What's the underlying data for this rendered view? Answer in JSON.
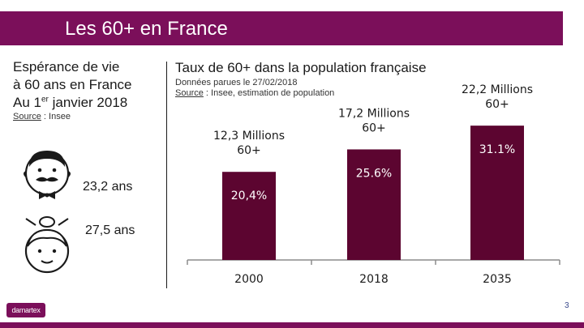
{
  "header": {
    "title": "Les 60+ en France"
  },
  "left_panel": {
    "heading_line1": "Espérance de vie",
    "heading_line2": "à 60 ans en France",
    "heading_line3_prefix": "Au 1",
    "heading_line3_sup": "er",
    "heading_line3_suffix": " janvier 2018",
    "source_label": "Source",
    "source_text": " : Insee",
    "men_life_expectancy": "23,2 ans",
    "women_life_expectancy": "27,5 ans"
  },
  "right_panel": {
    "heading": "Taux de 60+ dans la population française",
    "subtitle": "Données parues le 27/02/2018",
    "source_label": "Source",
    "source_text": " : Insee, estimation de population"
  },
  "chart_data": {
    "type": "bar",
    "title": "Taux de 60+ dans la population française",
    "categories": [
      "2000",
      "2018",
      "2035"
    ],
    "values": [
      20.4,
      25.6,
      31.1
    ],
    "value_labels": [
      "20,4%",
      "25.6%",
      "31.1%"
    ],
    "annotations_line1": [
      "12,3  Millions",
      "17,2 Millions",
      "22,2 Millions"
    ],
    "annotations_line2": [
      "60+",
      "60+",
      "60+"
    ],
    "unit": "%",
    "ylim": [
      0,
      36
    ],
    "bar_color": "#5c0530",
    "value_label_color": "#ffffff"
  },
  "footer": {
    "slide_number": "3",
    "logo_text": "damartex"
  }
}
